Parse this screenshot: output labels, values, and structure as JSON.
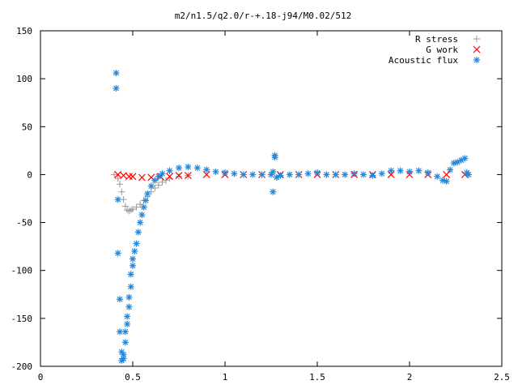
{
  "chart_data": {
    "type": "scatter",
    "title": "m2/n1.5/q2.0/r-+.18-j94/M0.02/512",
    "xlim": [
      0,
      2.5
    ],
    "ylim": [
      -200,
      150
    ],
    "xticks": [
      "0",
      "0.5",
      "1",
      "1.5",
      "2",
      "2.5"
    ],
    "yticks": [
      "150",
      "100",
      "50",
      "0",
      "-50",
      "-100",
      "-150",
      "-200"
    ],
    "legend_position": "top-right",
    "series": [
      {
        "name": "R stress",
        "color": "#999999",
        "marker": "plus",
        "x": [
          0.4,
          0.42,
          0.43,
          0.44,
          0.45,
          0.46,
          0.47,
          0.48,
          0.49,
          0.5,
          0.52,
          0.54,
          0.56,
          0.58,
          0.6,
          0.62,
          0.64,
          0.66,
          0.68,
          0.7,
          0.75,
          0.8
        ],
        "y": [
          0,
          -4,
          -10,
          -18,
          -26,
          -33,
          -37,
          -38,
          -37,
          -36,
          -34,
          -31,
          -27,
          -23,
          -18,
          -14,
          -11,
          -8,
          -6,
          -4,
          -2,
          -1
        ]
      },
      {
        "name": "G work",
        "color": "#ff0000",
        "marker": "cross",
        "x": [
          0.42,
          0.45,
          0.48,
          0.5,
          0.55,
          0.6,
          0.65,
          0.7,
          0.75,
          0.8,
          0.9,
          1.0,
          1.1,
          1.2,
          1.3,
          1.4,
          1.5,
          1.6,
          1.7,
          1.8,
          1.9,
          2.0,
          2.1,
          2.2,
          2.3
        ],
        "y": [
          0,
          -1,
          -2,
          -2,
          -3,
          -3,
          -2,
          -2,
          -1,
          -1,
          0,
          0,
          0,
          0,
          0,
          0,
          0,
          0,
          0,
          0,
          0,
          0,
          0,
          0,
          0
        ]
      },
      {
        "name": "Acoustic flux",
        "color": "#2288dd",
        "marker": "star",
        "x": [
          0.41,
          0.41,
          0.42,
          0.42,
          0.43,
          0.43,
          0.44,
          0.44,
          0.45,
          0.45,
          0.46,
          0.46,
          0.47,
          0.47,
          0.48,
          0.48,
          0.49,
          0.49,
          0.5,
          0.5,
          0.51,
          0.52,
          0.53,
          0.54,
          0.55,
          0.56,
          0.57,
          0.58,
          0.6,
          0.62,
          0.64,
          0.66,
          0.7,
          0.75,
          0.8,
          0.85,
          0.9,
          0.95,
          1.0,
          1.05,
          1.1,
          1.15,
          1.2,
          1.25,
          1.26,
          1.26,
          1.27,
          1.27,
          1.28,
          1.3,
          1.35,
          1.4,
          1.45,
          1.5,
          1.55,
          1.6,
          1.65,
          1.7,
          1.75,
          1.8,
          1.85,
          1.9,
          1.95,
          2.0,
          2.05,
          2.1,
          2.15,
          2.18,
          2.2,
          2.22,
          2.24,
          2.26,
          2.28,
          2.3,
          2.31,
          2.32
        ],
        "y": [
          106,
          90,
          -26,
          -82,
          -130,
          -164,
          -185,
          -194,
          -192,
          -188,
          -175,
          -164,
          -156,
          -148,
          -138,
          -128,
          -117,
          -104,
          -95,
          -88,
          -80,
          -72,
          -60,
          -50,
          -42,
          -34,
          -27,
          -20,
          -12,
          -6,
          -2,
          1,
          4,
          7,
          8,
          7,
          5,
          3,
          2,
          1,
          0,
          0,
          0,
          0,
          3,
          -18,
          18,
          20,
          -3,
          -1,
          0,
          0,
          1,
          2,
          0,
          0,
          0,
          1,
          0,
          -1,
          1,
          4,
          4,
          3,
          4,
          2,
          -2,
          -6,
          -7,
          5,
          12,
          13,
          15,
          17,
          2,
          0
        ]
      }
    ]
  }
}
